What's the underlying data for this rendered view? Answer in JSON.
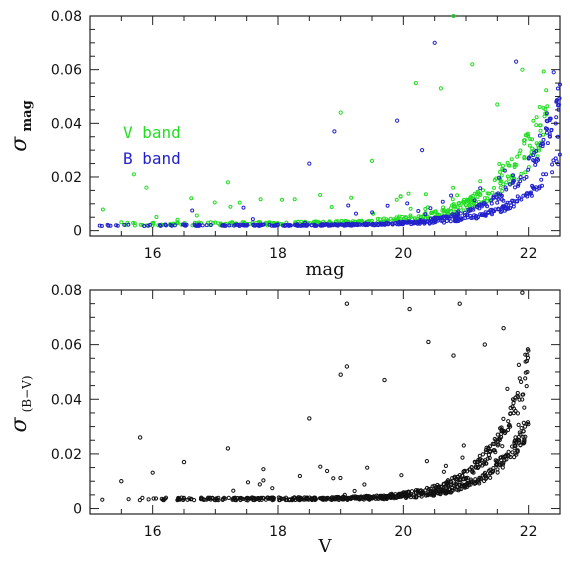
{
  "chart_data": [
    {
      "type": "scatter",
      "xlabel": "mag",
      "ylabel": {
        "symbol": "σ",
        "subscript": "mag"
      },
      "xlim": [
        15,
        22.5
      ],
      "ylim": [
        -0.002,
        0.08
      ],
      "xticks": [
        "16",
        "18",
        "20",
        "22"
      ],
      "yticks": [
        "0",
        "0.02",
        "0.04",
        "0.06",
        "0.08"
      ],
      "legend_placement": "left",
      "series": [
        {
          "name": "V band",
          "color": "#22dd22"
        },
        {
          "name": "B band",
          "color": "#2222cc"
        }
      ],
      "outliers": [
        {
          "series": "V band",
          "x": 15.9,
          "y": 0.016
        },
        {
          "series": "V band",
          "x": 15.7,
          "y": 0.021
        },
        {
          "series": "V band",
          "x": 17.2,
          "y": 0.018
        },
        {
          "series": "V band",
          "x": 19.0,
          "y": 0.044
        },
        {
          "series": "V band",
          "x": 20.2,
          "y": 0.055
        },
        {
          "series": "V band",
          "x": 20.6,
          "y": 0.053
        },
        {
          "series": "V band",
          "x": 20.8,
          "y": 0.08
        },
        {
          "series": "V band",
          "x": 21.1,
          "y": 0.062
        },
        {
          "series": "V band",
          "x": 21.5,
          "y": 0.047
        },
        {
          "series": "V band",
          "x": 21.9,
          "y": 0.06
        },
        {
          "series": "V band",
          "x": 19.5,
          "y": 0.026
        },
        {
          "series": "B band",
          "x": 20.5,
          "y": 0.07
        },
        {
          "series": "B band",
          "x": 21.8,
          "y": 0.063
        },
        {
          "series": "B band",
          "x": 18.5,
          "y": 0.025
        },
        {
          "series": "B band",
          "x": 18.9,
          "y": 0.037
        },
        {
          "series": "B band",
          "x": 19.9,
          "y": 0.041
        },
        {
          "series": "B band",
          "x": 22.4,
          "y": 0.059
        },
        {
          "series": "B band",
          "x": 20.3,
          "y": 0.03
        }
      ]
    },
    {
      "type": "scatter",
      "xlabel": "V",
      "ylabel": {
        "symbol": "σ",
        "subscript": "(B−V)"
      },
      "xlim": [
        15,
        22.5
      ],
      "ylim": [
        -0.002,
        0.08
      ],
      "xticks": [
        "16",
        "18",
        "20",
        "22"
      ],
      "yticks": [
        "0",
        "0.02",
        "0.04",
        "0.06",
        "0.08"
      ],
      "series": [
        {
          "name": "",
          "color": "#111111"
        }
      ],
      "outliers": [
        {
          "series": "",
          "x": 15.8,
          "y": 0.026
        },
        {
          "series": "",
          "x": 17.2,
          "y": 0.022
        },
        {
          "series": "",
          "x": 19.1,
          "y": 0.075
        },
        {
          "series": "",
          "x": 20.1,
          "y": 0.073
        },
        {
          "series": "",
          "x": 20.9,
          "y": 0.075
        },
        {
          "series": "",
          "x": 21.9,
          "y": 0.079
        },
        {
          "series": "",
          "x": 20.4,
          "y": 0.061
        },
        {
          "series": "",
          "x": 21.6,
          "y": 0.066
        },
        {
          "series": "",
          "x": 19.1,
          "y": 0.052
        },
        {
          "series": "",
          "x": 19.0,
          "y": 0.049
        },
        {
          "series": "",
          "x": 19.7,
          "y": 0.047
        },
        {
          "series": "",
          "x": 18.5,
          "y": 0.033
        },
        {
          "series": "",
          "x": 20.8,
          "y": 0.056
        },
        {
          "series": "",
          "x": 16.5,
          "y": 0.017
        },
        {
          "series": "",
          "x": 15.5,
          "y": 0.01
        },
        {
          "series": "",
          "x": 21.3,
          "y": 0.06
        }
      ]
    }
  ]
}
